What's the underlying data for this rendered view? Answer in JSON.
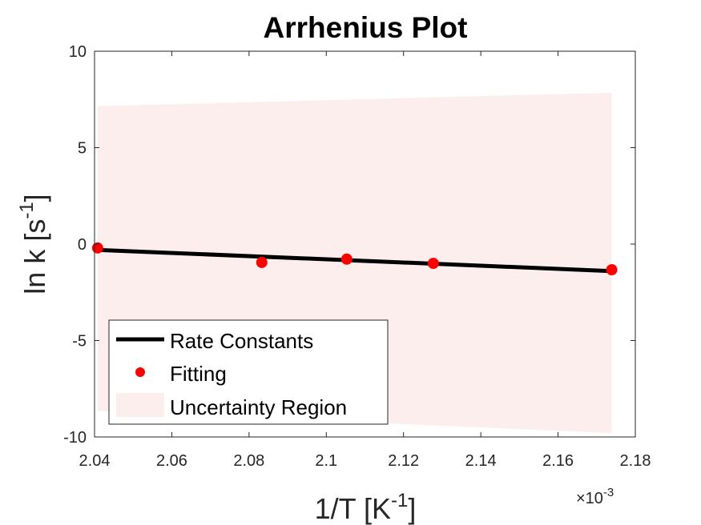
{
  "chart_data": {
    "type": "line",
    "title": "Arrhenius Plot",
    "xlabel": {
      "main": "1/T [K",
      "sup": "-1",
      "close": "]"
    },
    "ylabel": {
      "main": "ln k [s",
      "sup": "-1",
      "close": "]"
    },
    "x_multiplier": {
      "prefix": "×10",
      "sup": "-3"
    },
    "xlim": [
      2.04,
      2.18
    ],
    "ylim": [
      -10,
      10
    ],
    "x_ticks": [
      2.04,
      2.06,
      2.08,
      2.1,
      2.12,
      2.14,
      2.16,
      2.18
    ],
    "x_tick_labels": [
      "2.04",
      "2.06",
      "2.08",
      "2.1",
      "2.12",
      "2.14",
      "2.16",
      "2.18"
    ],
    "y_ticks": [
      -10,
      -5,
      0,
      5,
      10
    ],
    "y_tick_labels": [
      "-10",
      "-5",
      "0",
      "5",
      "10"
    ],
    "grid": false,
    "legend_position": "bottom-left",
    "series": [
      {
        "name": "Rate Constants",
        "kind": "line",
        "color": "#000000",
        "x": [
          2.0408,
          2.1739
        ],
        "y": [
          -0.3,
          -1.4
        ]
      },
      {
        "name": "Fitting",
        "kind": "scatter",
        "color": "#ff0000",
        "x": [
          2.0408,
          2.0833,
          2.1053,
          2.1277,
          2.1739
        ],
        "y": [
          -0.2,
          -0.95,
          -0.78,
          -1.0,
          -1.33
        ]
      },
      {
        "name": "Uncertainty Region",
        "kind": "area",
        "color": "#fdeeee",
        "x": [
          2.0408,
          2.1739
        ],
        "upper": [
          7.15,
          7.85
        ],
        "lower": [
          -8.65,
          -9.8
        ]
      }
    ]
  }
}
